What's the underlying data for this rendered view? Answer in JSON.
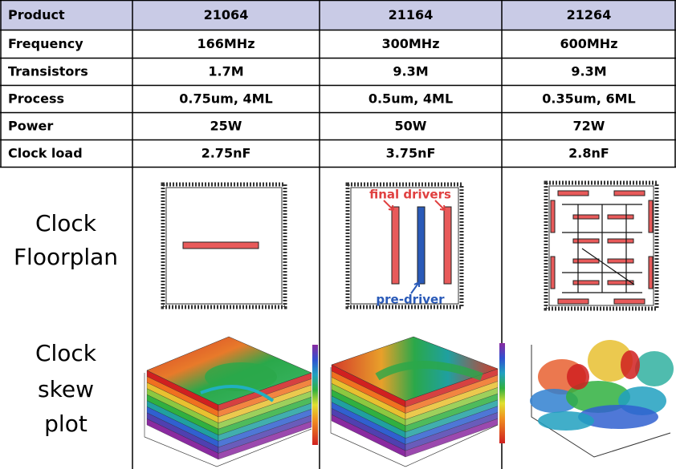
{
  "table": {
    "header": [
      "Product",
      "21064",
      "21164",
      "21264"
    ],
    "rows": [
      [
        "Frequency",
        "166MHz",
        "300MHz",
        "600MHz"
      ],
      [
        "Transistors",
        "1.7M",
        "9.3M",
        "9.3M"
      ],
      [
        "Process",
        "0.75um, 4ML",
        "0.5um, 4ML",
        "0.35um, 6ML"
      ],
      [
        "Power",
        "25W",
        "50W",
        "72W"
      ],
      [
        "Clock load",
        "2.75nF",
        "3.75nF",
        "2.8nF"
      ]
    ]
  },
  "sections": [
    {
      "lines": [
        "Clock",
        "Floorplan"
      ]
    },
    {
      "lines": [
        "Clock",
        "skew",
        "plot"
      ]
    }
  ],
  "annotations": {
    "final_drivers": "final drivers",
    "pre_driver": "pre-driver"
  }
}
